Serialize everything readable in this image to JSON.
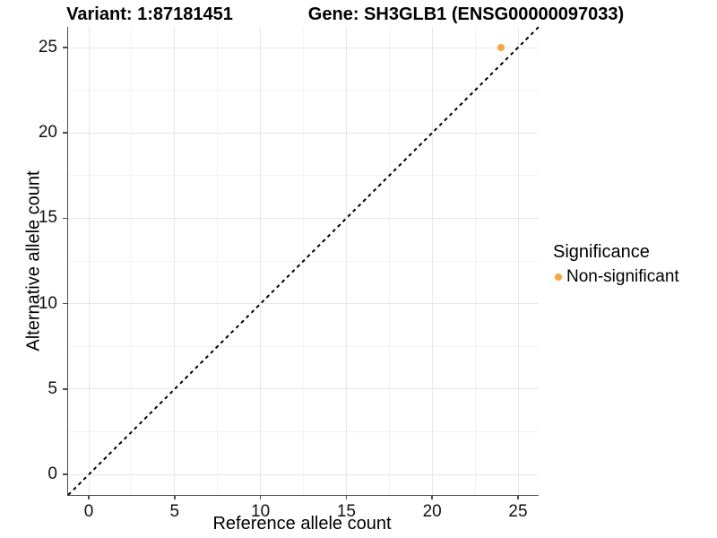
{
  "chart_data": {
    "type": "scatter",
    "title_left": "Variant: 1:87181451",
    "title_right": "Gene: SH3GLB1 (ENSG00000097033)",
    "xlabel": "Reference allele count",
    "ylabel": "Alternative allele count",
    "xlim": [
      0,
      25
    ],
    "ylim": [
      0,
      25
    ],
    "xticks": [
      0,
      5,
      10,
      15,
      20,
      25
    ],
    "yticks": [
      0,
      5,
      10,
      15,
      20,
      25
    ],
    "minor_ticks_x": [
      2.5,
      7.5,
      12.5,
      17.5,
      22.5
    ],
    "minor_ticks_y": [
      2.5,
      7.5,
      12.5,
      17.5,
      22.5
    ],
    "grid": "on",
    "identity_line": {
      "equation": "y = x",
      "style": "dashed",
      "color": "#000000"
    },
    "series": [
      {
        "name": "Non-significant",
        "color": "#FAA43A",
        "points": [
          {
            "x": 24,
            "y": 25
          }
        ]
      }
    ],
    "legend": {
      "title": "Significance",
      "position": "right",
      "entries": [
        {
          "label": "Non-significant",
          "color": "#FAA43A",
          "marker": "circle"
        }
      ]
    }
  },
  "colors": {
    "axis_line": "#4d4d4d",
    "grid_major": "#e7e7e7",
    "grid_minor": "#f3f3f3",
    "background": "#ffffff"
  }
}
